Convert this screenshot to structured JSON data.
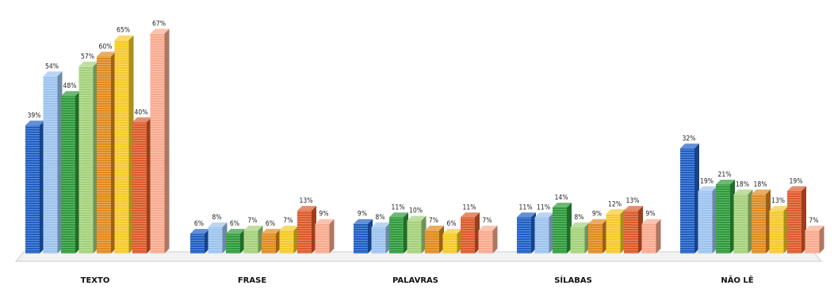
{
  "chart_data": {
    "type": "bar",
    "title": "",
    "xlabel": "",
    "ylabel": "",
    "ylim": [
      0,
      70
    ],
    "grid": false,
    "legend": "none",
    "categories": [
      "TEXTO",
      "FRASE",
      "PALAVRAS",
      "SÍLABAS",
      "NÃO LÊ"
    ],
    "series": [
      {
        "color": "#1f5fc4",
        "values": [
          39,
          6,
          9,
          11,
          32
        ],
        "labels": [
          "39%",
          "6%",
          "9%",
          "11%",
          "32%"
        ]
      },
      {
        "color": "#9cc3ee",
        "values": [
          54,
          8,
          8,
          11,
          19
        ],
        "labels": [
          "54%",
          "8%",
          "8%",
          "11%",
          "19%"
        ]
      },
      {
        "color": "#2e9a3a",
        "values": [
          48,
          6,
          11,
          14,
          21
        ],
        "labels": [
          "48%",
          "6%",
          "11%",
          "14%",
          "21%"
        ]
      },
      {
        "color": "#a4d17a",
        "values": [
          57,
          7,
          10,
          8,
          18
        ],
        "labels": [
          "57%",
          "7%",
          "10%",
          "8%",
          "18%"
        ]
      },
      {
        "color": "#e08a1e",
        "values": [
          60,
          6,
          7,
          9,
          18
        ],
        "labels": [
          "60%",
          "6%",
          "7%",
          "9%",
          "18%"
        ]
      },
      {
        "color": "#f5c92a",
        "values": [
          65,
          7,
          6,
          12,
          13
        ],
        "labels": [
          "65%",
          "7%",
          "6%",
          "12%",
          "13%"
        ]
      },
      {
        "color": "#dc5a2a",
        "values": [
          40,
          13,
          11,
          13,
          19
        ],
        "labels": [
          "40%",
          "13%",
          "11%",
          "13%",
          "19%"
        ]
      },
      {
        "color": "#f8aa8e",
        "values": [
          67,
          9,
          7,
          9,
          7
        ],
        "labels": [
          "67%",
          "9%",
          "7%",
          "9%",
          "7%"
        ]
      }
    ]
  }
}
